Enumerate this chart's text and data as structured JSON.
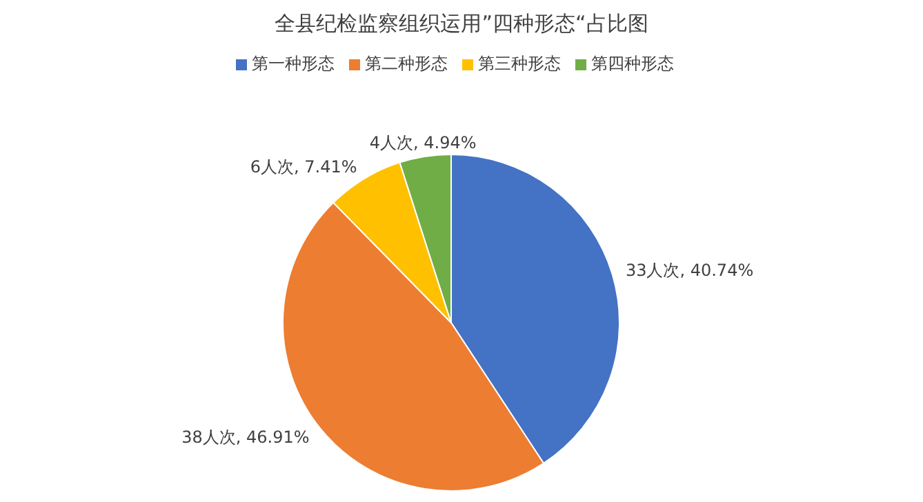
{
  "chart_data": {
    "type": "pie",
    "title": "全县纪检监察组织运用”四种形态“占比图",
    "categories": [
      "第一种形态",
      "第二种形态",
      "第三种形态",
      "第四种形态"
    ],
    "values": [
      33,
      38,
      6,
      4
    ],
    "colors": [
      "#4472c4",
      "#ed7d31",
      "#ffc000",
      "#70ad47"
    ],
    "value_labels": [
      "33人次, 40.74%",
      "38人次, 46.91%",
      "6人次, 7.41%",
      "4人次, 4.94%"
    ],
    "legend": "top"
  }
}
